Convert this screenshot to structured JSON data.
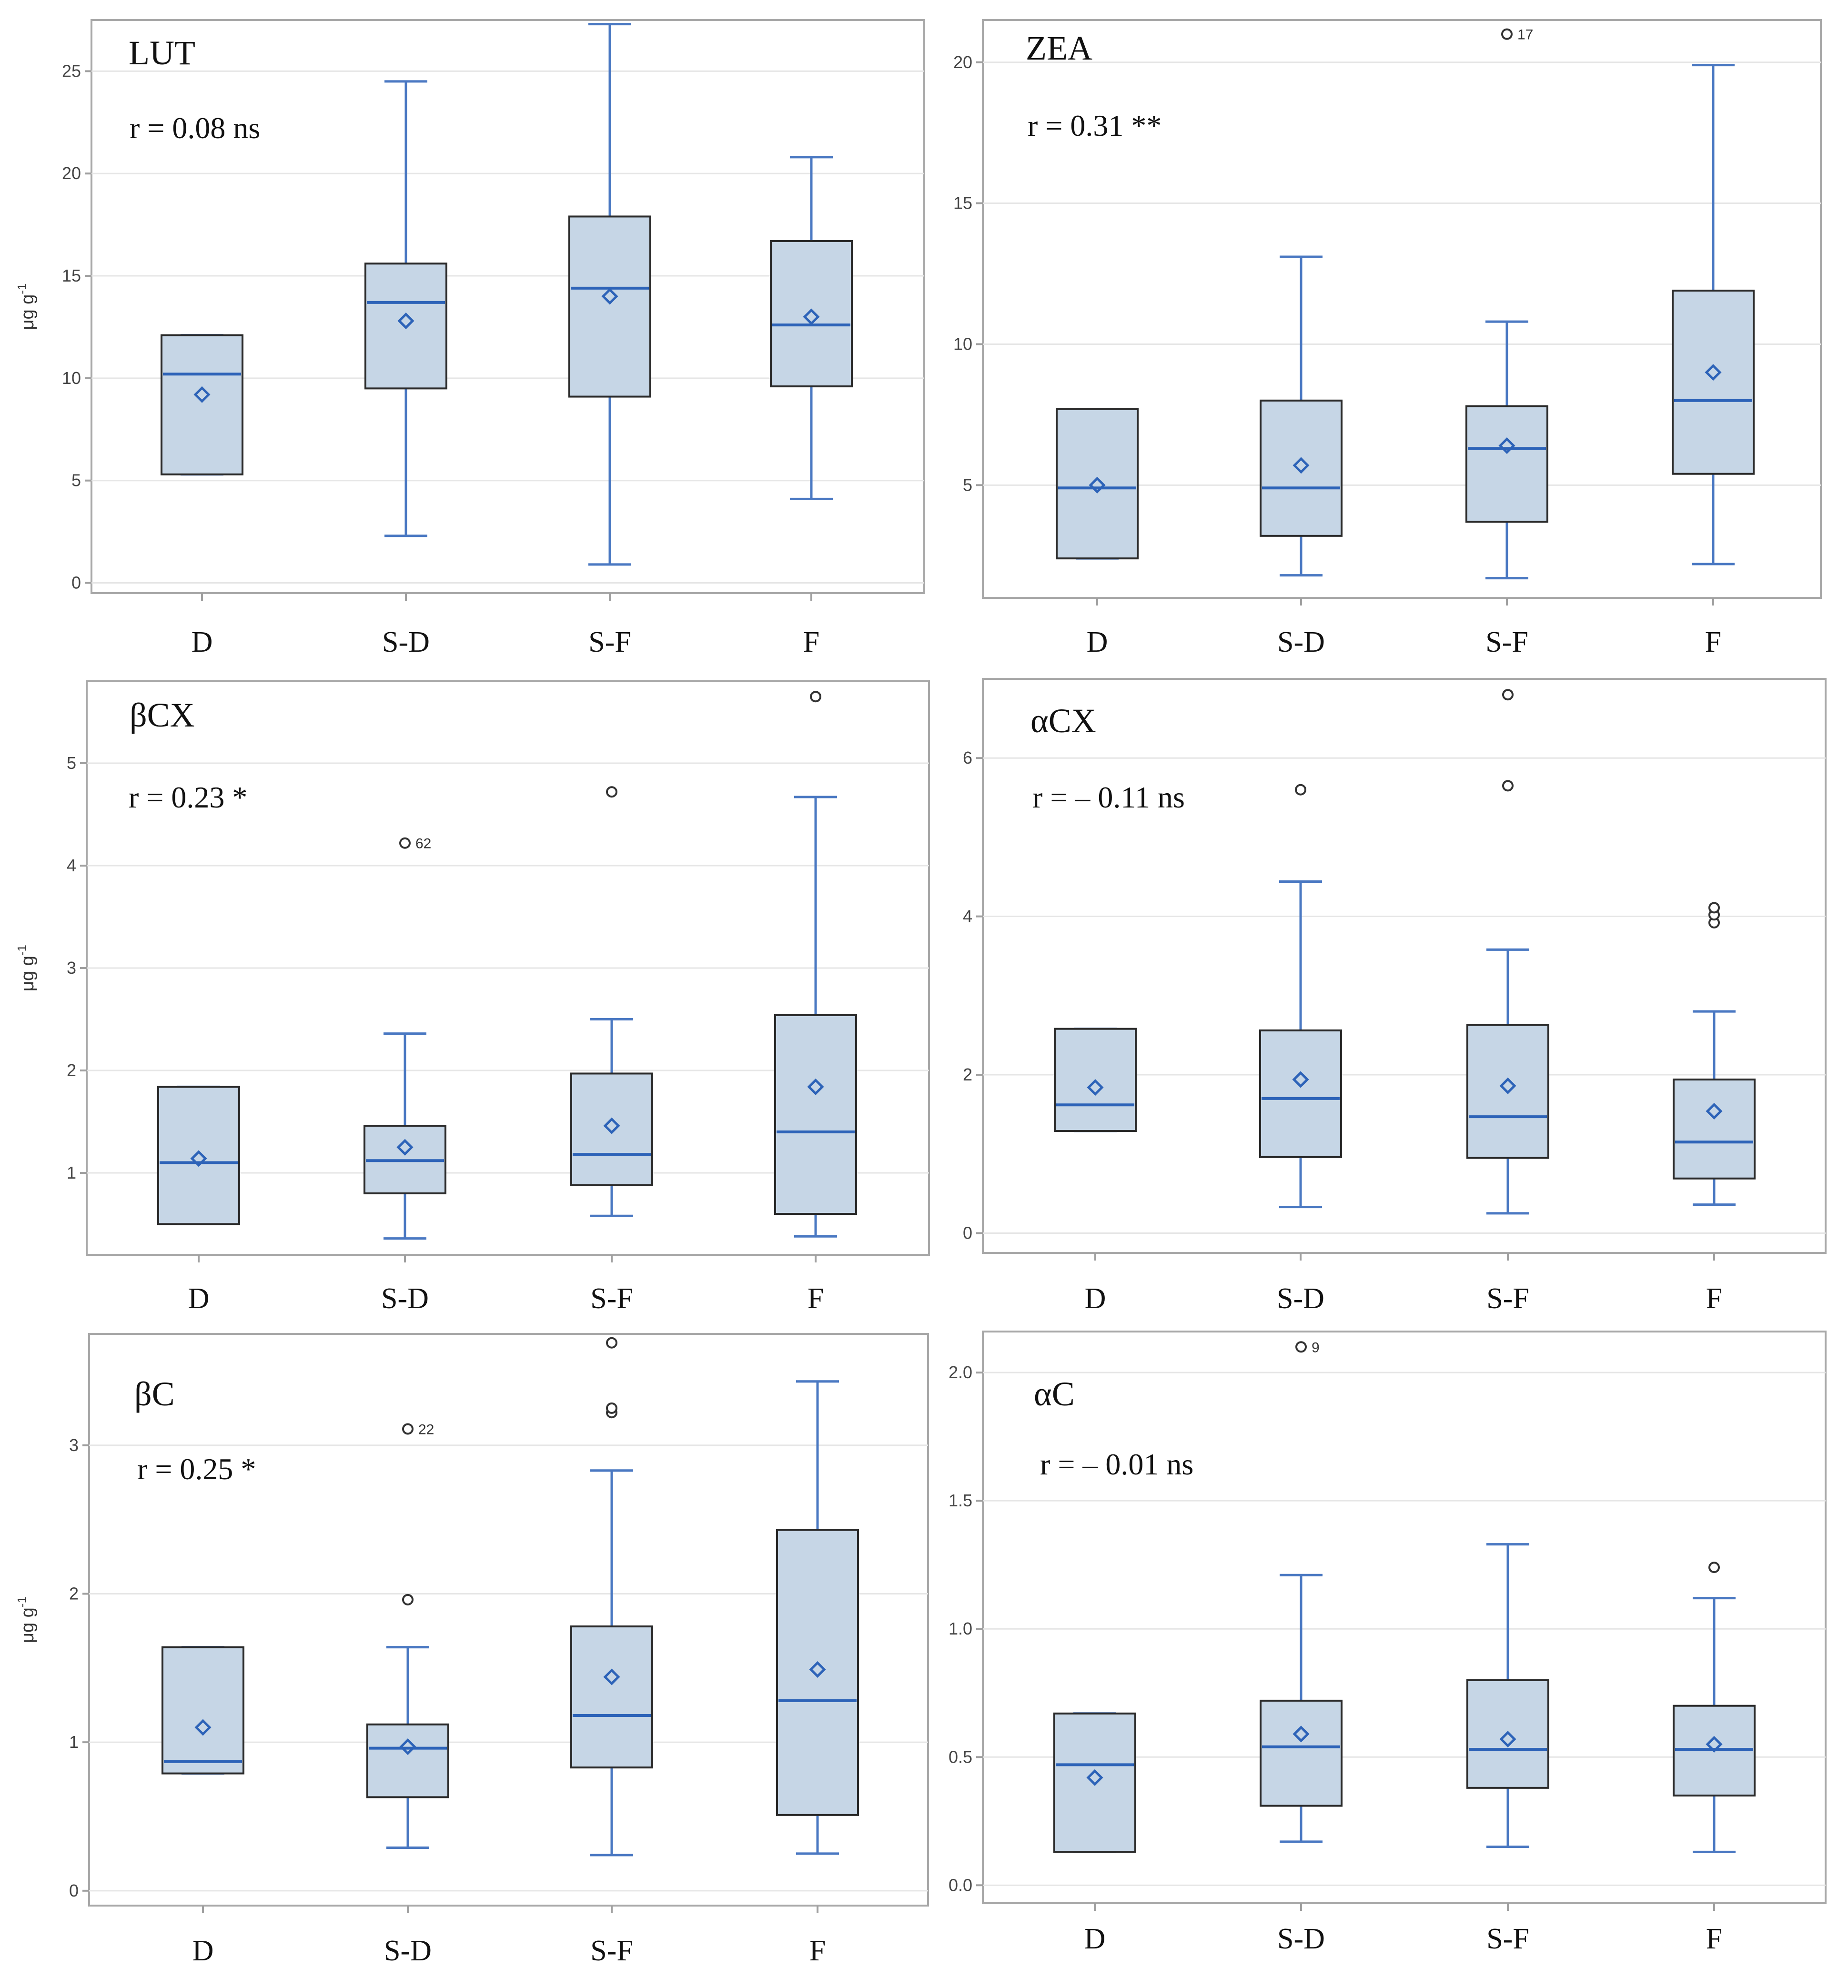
{
  "figure": {
    "y_unit_label": "μg g",
    "y_unit_exponent": "-1"
  },
  "chart_data": [
    {
      "type": "box",
      "title": "LUT",
      "stat": "r = 0.08 ns",
      "ylabel": "μg g-1",
      "ylim": [
        -0.5,
        27.5
      ],
      "yticks": [
        0,
        5,
        10,
        15,
        20,
        25
      ],
      "ytick_labels": [
        "0",
        "5",
        "10",
        "15",
        "20",
        "25"
      ],
      "categories": [
        "D",
        "S-D",
        "S-F",
        "F"
      ],
      "boxes": [
        {
          "min": 5.3,
          "q1": 5.3,
          "median": 10.2,
          "q3": 12.1,
          "max": 12.1,
          "mean": 9.2,
          "outliers": []
        },
        {
          "min": 2.3,
          "q1": 9.5,
          "median": 13.7,
          "q3": 15.6,
          "max": 24.5,
          "mean": 12.8,
          "outliers": []
        },
        {
          "min": 0.9,
          "q1": 9.1,
          "median": 14.4,
          "q3": 17.9,
          "max": 27.3,
          "mean": 14.0,
          "outliers": []
        },
        {
          "min": 4.1,
          "q1": 9.6,
          "median": 12.6,
          "q3": 16.7,
          "max": 20.8,
          "mean": 13.0,
          "outliers": []
        }
      ]
    },
    {
      "type": "box",
      "title": "ZEA",
      "stat": "r = 0.31 **",
      "ylabel": "",
      "ylim": [
        1.0,
        21.5
      ],
      "yticks": [
        5,
        10,
        15,
        20
      ],
      "ytick_labels": [
        "5",
        "10",
        "15",
        "20"
      ],
      "categories": [
        "D",
        "S-D",
        "S-F",
        "F"
      ],
      "boxes": [
        {
          "min": 2.4,
          "q1": 2.4,
          "median": 4.9,
          "q3": 7.7,
          "max": 7.7,
          "mean": 5.0,
          "outliers": []
        },
        {
          "min": 1.8,
          "q1": 3.2,
          "median": 4.9,
          "q3": 8.0,
          "max": 13.1,
          "mean": 5.7,
          "outliers": []
        },
        {
          "min": 1.7,
          "q1": 3.7,
          "median": 6.3,
          "q3": 7.8,
          "max": 10.8,
          "mean": 6.4,
          "outliers": [
            {
              "value": 21.0,
              "label": "17"
            }
          ]
        },
        {
          "min": 2.2,
          "q1": 5.4,
          "median": 8.0,
          "q3": 11.9,
          "max": 19.9,
          "mean": 9.0,
          "outliers": []
        }
      ]
    },
    {
      "type": "box",
      "title": "βCX",
      "stat": "r = 0.23 *",
      "ylabel": "μg g-1",
      "ylim": [
        0.2,
        5.8
      ],
      "yticks": [
        1,
        2,
        3,
        4,
        5
      ],
      "ytick_labels": [
        "1",
        "2",
        "3",
        "4",
        "5"
      ],
      "categories": [
        "D",
        "S-D",
        "S-F",
        "F"
      ],
      "boxes": [
        {
          "min": 0.5,
          "q1": 0.5,
          "median": 1.1,
          "q3": 1.84,
          "max": 1.84,
          "mean": 1.14,
          "outliers": []
        },
        {
          "min": 0.36,
          "q1": 0.8,
          "median": 1.12,
          "q3": 1.46,
          "max": 2.36,
          "mean": 1.25,
          "outliers": [
            {
              "value": 4.22,
              "label": "62"
            }
          ]
        },
        {
          "min": 0.58,
          "q1": 0.88,
          "median": 1.18,
          "q3": 1.97,
          "max": 2.5,
          "mean": 1.46,
          "outliers": [
            {
              "value": 4.72,
              "label": ""
            }
          ]
        },
        {
          "min": 0.38,
          "q1": 0.6,
          "median": 1.4,
          "q3": 2.54,
          "max": 4.67,
          "mean": 1.84,
          "outliers": [
            {
              "value": 5.65,
              "label": ""
            }
          ]
        }
      ]
    },
    {
      "type": "box",
      "title": "αCX",
      "stat": "r = – 0.11 ns",
      "ylabel": "",
      "ylim": [
        -0.25,
        7.0
      ],
      "yticks": [
        0,
        2,
        4,
        6
      ],
      "ytick_labels": [
        "0",
        "2",
        "4",
        "6"
      ],
      "categories": [
        "D",
        "S-D",
        "S-F",
        "F"
      ],
      "boxes": [
        {
          "min": 1.29,
          "q1": 1.29,
          "median": 1.62,
          "q3": 2.58,
          "max": 2.58,
          "mean": 1.84,
          "outliers": []
        },
        {
          "min": 0.33,
          "q1": 0.96,
          "median": 1.7,
          "q3": 2.56,
          "max": 4.44,
          "mean": 1.94,
          "outliers": [
            {
              "value": 5.6,
              "label": ""
            }
          ]
        },
        {
          "min": 0.25,
          "q1": 0.95,
          "median": 1.47,
          "q3": 2.63,
          "max": 3.58,
          "mean": 1.86,
          "outliers": [
            {
              "value": 5.65,
              "label": ""
            },
            {
              "value": 6.8,
              "label": ""
            }
          ]
        },
        {
          "min": 0.36,
          "q1": 0.69,
          "median": 1.15,
          "q3": 1.94,
          "max": 2.8,
          "mean": 1.54,
          "outliers": [
            {
              "value": 3.92,
              "label": ""
            },
            {
              "value": 4.02,
              "label": ""
            },
            {
              "value": 4.11,
              "label": ""
            }
          ]
        }
      ]
    },
    {
      "type": "box",
      "title": "βC",
      "stat": "r = 0.25 *",
      "ylabel": "μg g-1",
      "ylim": [
        -0.1,
        3.75
      ],
      "yticks": [
        0,
        1,
        2,
        3
      ],
      "ytick_labels": [
        "0",
        "1",
        "2",
        "3"
      ],
      "categories": [
        "D",
        "S-D",
        "S-F",
        "F"
      ],
      "boxes": [
        {
          "min": 0.79,
          "q1": 0.79,
          "median": 0.87,
          "q3": 1.64,
          "max": 1.64,
          "mean": 1.1,
          "outliers": []
        },
        {
          "min": 0.29,
          "q1": 0.63,
          "median": 0.96,
          "q3": 1.12,
          "max": 1.64,
          "mean": 0.97,
          "outliers": [
            {
              "value": 1.96,
              "label": ""
            },
            {
              "value": 3.11,
              "label": "22"
            }
          ]
        },
        {
          "min": 0.24,
          "q1": 0.83,
          "median": 1.18,
          "q3": 1.78,
          "max": 2.83,
          "mean": 1.44,
          "outliers": [
            {
              "value": 3.22,
              "label": ""
            },
            {
              "value": 3.25,
              "label": ""
            },
            {
              "value": 3.69,
              "label": ""
            }
          ]
        },
        {
          "min": 0.25,
          "q1": 0.51,
          "median": 1.28,
          "q3": 2.43,
          "max": 3.43,
          "mean": 1.49,
          "outliers": []
        }
      ]
    },
    {
      "type": "box",
      "title": "αC",
      "stat": "r = – 0.01 ns",
      "ylabel": "",
      "ylim": [
        -0.07,
        2.16
      ],
      "yticks": [
        0.0,
        0.5,
        1.0,
        1.5,
        2.0
      ],
      "ytick_labels": [
        "0.0",
        "0.5",
        "1.0",
        "1.5",
        "2.0"
      ],
      "categories": [
        "D",
        "S-D",
        "S-F",
        "F"
      ],
      "boxes": [
        {
          "min": 0.13,
          "q1": 0.13,
          "median": 0.47,
          "q3": 0.67,
          "max": 0.67,
          "mean": 0.42,
          "outliers": []
        },
        {
          "min": 0.17,
          "q1": 0.31,
          "median": 0.54,
          "q3": 0.72,
          "max": 1.21,
          "mean": 0.59,
          "outliers": [
            {
              "value": 2.1,
              "label": "9"
            }
          ]
        },
        {
          "min": 0.15,
          "q1": 0.38,
          "median": 0.53,
          "q3": 0.8,
          "max": 1.33,
          "mean": 0.57,
          "outliers": []
        },
        {
          "min": 0.13,
          "q1": 0.35,
          "median": 0.53,
          "q3": 0.7,
          "max": 1.12,
          "mean": 0.55,
          "outliers": [
            {
              "value": 1.24,
              "label": ""
            }
          ]
        }
      ]
    }
  ]
}
